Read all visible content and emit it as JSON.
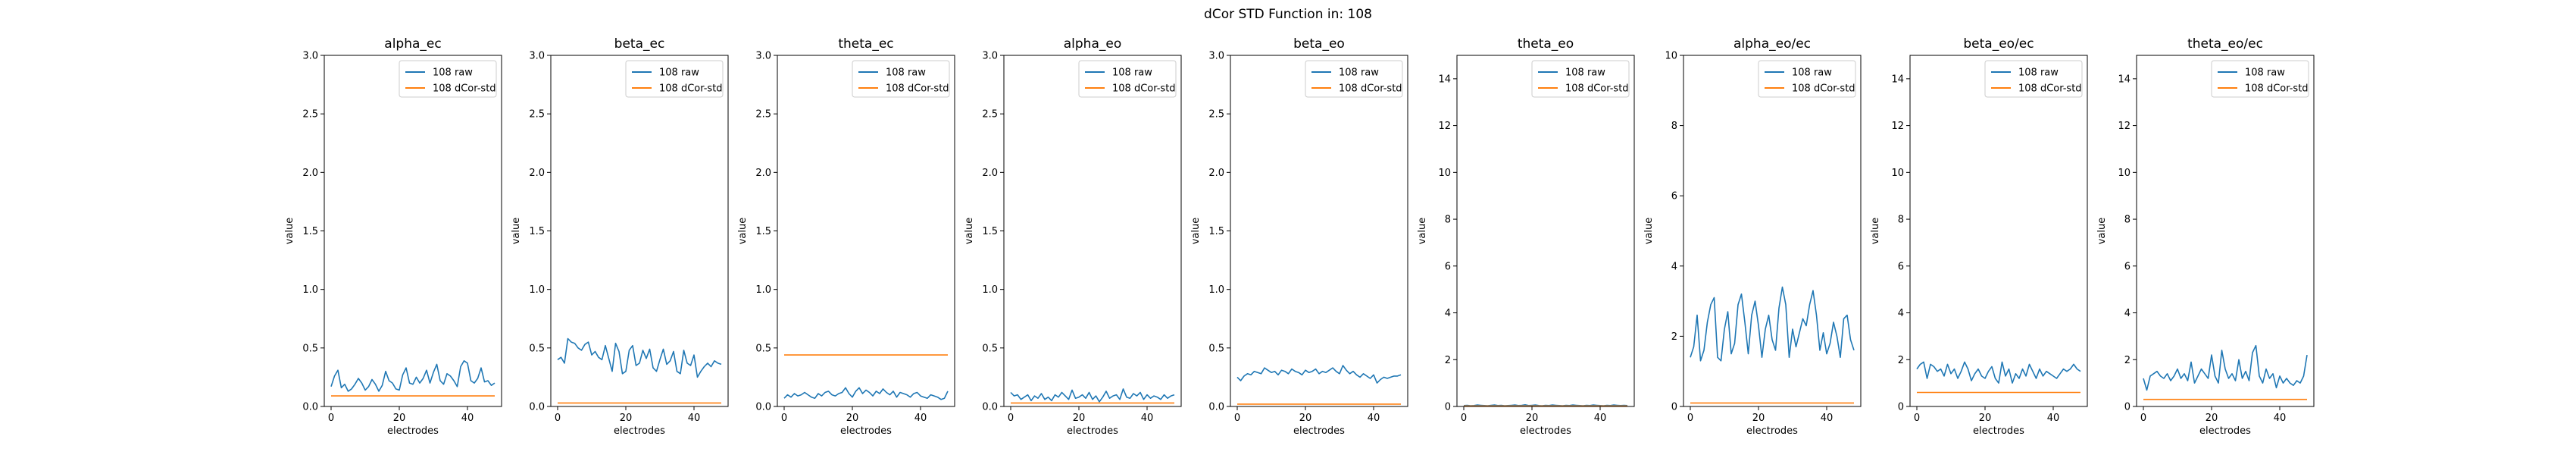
{
  "figure": {
    "suptitle": "dCor STD Function in: 108"
  },
  "chart_data": [
    {
      "type": "line",
      "title": "alpha_ec",
      "xlabel": "electrodes",
      "ylabel": "value",
      "xlim": [
        -2,
        50
      ],
      "ylim": [
        0,
        3
      ],
      "xticks": [
        0,
        20,
        40
      ],
      "yticks": [
        0,
        0.5,
        1,
        1.5,
        2,
        2.5,
        3
      ],
      "legend": "top-right",
      "series": [
        {
          "name": "108 raw",
          "color": "#1f77b4",
          "y": [
            0.17,
            0.26,
            0.31,
            0.16,
            0.19,
            0.13,
            0.15,
            0.19,
            0.24,
            0.2,
            0.14,
            0.17,
            0.23,
            0.19,
            0.13,
            0.18,
            0.3,
            0.22,
            0.2,
            0.15,
            0.14,
            0.27,
            0.33,
            0.2,
            0.19,
            0.25,
            0.2,
            0.24,
            0.31,
            0.2,
            0.29,
            0.36,
            0.22,
            0.19,
            0.28,
            0.26,
            0.22,
            0.17,
            0.34,
            0.39,
            0.37,
            0.22,
            0.2,
            0.24,
            0.33,
            0.21,
            0.22,
            0.18,
            0.2
          ]
        },
        {
          "name": "108 dCor-std",
          "color": "#ff7f0e",
          "y": [
            0.09,
            0.09
          ]
        }
      ]
    },
    {
      "type": "line",
      "title": "beta_ec",
      "xlabel": "electrodes",
      "ylabel": "value",
      "xlim": [
        -2,
        50
      ],
      "ylim": [
        0,
        3
      ],
      "xticks": [
        0,
        20,
        40
      ],
      "yticks": [
        0,
        0.5,
        1,
        1.5,
        2,
        2.5,
        3
      ],
      "legend": "top-right",
      "series": [
        {
          "name": "108 raw",
          "color": "#1f77b4",
          "y": [
            0.4,
            0.42,
            0.37,
            0.58,
            0.55,
            0.54,
            0.5,
            0.48,
            0.53,
            0.55,
            0.44,
            0.47,
            0.42,
            0.4,
            0.52,
            0.41,
            0.3,
            0.54,
            0.47,
            0.28,
            0.3,
            0.48,
            0.52,
            0.35,
            0.37,
            0.48,
            0.41,
            0.49,
            0.33,
            0.3,
            0.4,
            0.49,
            0.36,
            0.39,
            0.47,
            0.3,
            0.28,
            0.48,
            0.37,
            0.35,
            0.44,
            0.25,
            0.3,
            0.34,
            0.37,
            0.34,
            0.39,
            0.37,
            0.36
          ]
        },
        {
          "name": "108 dCor-std",
          "color": "#ff7f0e",
          "y": [
            0.03,
            0.03
          ]
        }
      ]
    },
    {
      "type": "line",
      "title": "theta_ec",
      "xlabel": "electrodes",
      "ylabel": "value",
      "xlim": [
        -2,
        50
      ],
      "ylim": [
        0,
        3
      ],
      "xticks": [
        0,
        20,
        40
      ],
      "yticks": [
        0,
        0.5,
        1,
        1.5,
        2,
        2.5,
        3
      ],
      "legend": "top-right",
      "series": [
        {
          "name": "108 raw",
          "color": "#1f77b4",
          "y": [
            0.07,
            0.1,
            0.08,
            0.11,
            0.09,
            0.1,
            0.12,
            0.1,
            0.08,
            0.07,
            0.11,
            0.09,
            0.12,
            0.13,
            0.1,
            0.09,
            0.11,
            0.12,
            0.16,
            0.11,
            0.08,
            0.13,
            0.16,
            0.11,
            0.14,
            0.12,
            0.09,
            0.13,
            0.11,
            0.15,
            0.12,
            0.1,
            0.13,
            0.08,
            0.12,
            0.11,
            0.1,
            0.08,
            0.11,
            0.12,
            0.09,
            0.08,
            0.07,
            0.1,
            0.09,
            0.08,
            0.06,
            0.07,
            0.13
          ]
        },
        {
          "name": "108 dCor-std",
          "color": "#ff7f0e",
          "y": [
            0.44,
            0.44
          ]
        }
      ]
    },
    {
      "type": "line",
      "title": "alpha_eo",
      "xlabel": "electrodes",
      "ylabel": "value",
      "xlim": [
        -2,
        50
      ],
      "ylim": [
        0,
        3
      ],
      "xticks": [
        0,
        20,
        40
      ],
      "yticks": [
        0,
        0.5,
        1,
        1.5,
        2,
        2.5,
        3
      ],
      "legend": "top-right",
      "series": [
        {
          "name": "108 raw",
          "color": "#1f77b4",
          "y": [
            0.12,
            0.09,
            0.1,
            0.06,
            0.08,
            0.1,
            0.05,
            0.09,
            0.07,
            0.11,
            0.06,
            0.08,
            0.05,
            0.1,
            0.08,
            0.12,
            0.09,
            0.06,
            0.14,
            0.07,
            0.08,
            0.1,
            0.07,
            0.12,
            0.06,
            0.09,
            0.04,
            0.08,
            0.13,
            0.07,
            0.09,
            0.1,
            0.06,
            0.15,
            0.08,
            0.07,
            0.11,
            0.09,
            0.12,
            0.06,
            0.1,
            0.07,
            0.09,
            0.08,
            0.06,
            0.1,
            0.07,
            0.09,
            0.1
          ]
        },
        {
          "name": "108 dCor-std",
          "color": "#ff7f0e",
          "y": [
            0.03,
            0.03
          ]
        }
      ]
    },
    {
      "type": "line",
      "title": "beta_eo",
      "xlabel": "electrodes",
      "ylabel": "value",
      "xlim": [
        -2,
        50
      ],
      "ylim": [
        0,
        3
      ],
      "xticks": [
        0,
        20,
        40
      ],
      "yticks": [
        0,
        0.5,
        1,
        1.5,
        2,
        2.5,
        3
      ],
      "legend": "top-right",
      "series": [
        {
          "name": "108 raw",
          "color": "#1f77b4",
          "y": [
            0.25,
            0.22,
            0.26,
            0.28,
            0.27,
            0.3,
            0.29,
            0.28,
            0.33,
            0.31,
            0.29,
            0.3,
            0.27,
            0.31,
            0.3,
            0.28,
            0.32,
            0.3,
            0.29,
            0.27,
            0.31,
            0.29,
            0.3,
            0.32,
            0.28,
            0.3,
            0.29,
            0.31,
            0.33,
            0.3,
            0.28,
            0.35,
            0.31,
            0.28,
            0.3,
            0.27,
            0.25,
            0.28,
            0.26,
            0.24,
            0.27,
            0.2,
            0.23,
            0.25,
            0.24,
            0.25,
            0.26,
            0.26,
            0.27
          ]
        },
        {
          "name": "108 dCor-std",
          "color": "#ff7f0e",
          "y": [
            0.02,
            0.02
          ]
        }
      ]
    },
    {
      "type": "line",
      "title": "theta_eo",
      "xlabel": "electrodes",
      "ylabel": "value",
      "xlim": [
        -2,
        50
      ],
      "ylim": [
        0,
        15
      ],
      "xticks": [
        0,
        20,
        40
      ],
      "yticks": [
        0,
        2,
        4,
        6,
        8,
        10,
        12,
        14
      ],
      "legend": "top-right",
      "series": [
        {
          "name": "108 raw",
          "color": "#1f77b4",
          "y": [
            0.04,
            0.05,
            0.03,
            0.04,
            0.06,
            0.05,
            0.04,
            0.03,
            0.05,
            0.06,
            0.04,
            0.05,
            0.03,
            0.04,
            0.05,
            0.06,
            0.04,
            0.05,
            0.07,
            0.04,
            0.05,
            0.06,
            0.04,
            0.03,
            0.05,
            0.04,
            0.06,
            0.05,
            0.04,
            0.03,
            0.05,
            0.04,
            0.06,
            0.05,
            0.04,
            0.03,
            0.05,
            0.04,
            0.06,
            0.05,
            0.04,
            0.03,
            0.05,
            0.04,
            0.06,
            0.05,
            0.04,
            0.05,
            0.04
          ]
        },
        {
          "name": "108 dCor-std",
          "color": "#ff7f0e",
          "y": [
            0.02,
            0.02
          ]
        }
      ]
    },
    {
      "type": "line",
      "title": "alpha_eo/ec",
      "xlabel": "electrodes",
      "ylabel": "value",
      "xlim": [
        -2,
        50
      ],
      "ylim": [
        0,
        10
      ],
      "xticks": [
        0,
        20,
        40
      ],
      "yticks": [
        0,
        2,
        4,
        6,
        8,
        10
      ],
      "legend": "top-right",
      "series": [
        {
          "name": "108 raw",
          "color": "#1f77b4",
          "y": [
            1.4,
            1.7,
            2.6,
            1.3,
            1.6,
            2.4,
            2.9,
            3.1,
            1.4,
            1.3,
            2.2,
            2.7,
            1.5,
            1.8,
            2.9,
            3.2,
            2.4,
            1.5,
            2.6,
            3.0,
            2.3,
            1.4,
            2.2,
            2.6,
            1.9,
            1.6,
            2.8,
            3.4,
            2.9,
            1.4,
            2.2,
            1.7,
            2.1,
            2.5,
            2.3,
            2.9,
            3.3,
            2.6,
            1.6,
            2.1,
            1.5,
            1.8,
            2.4,
            2.0,
            1.4,
            2.5,
            2.6,
            1.9,
            1.6
          ]
        },
        {
          "name": "108 dCor-std",
          "color": "#ff7f0e",
          "y": [
            0.1,
            0.1
          ]
        }
      ]
    },
    {
      "type": "line",
      "title": "beta_eo/ec",
      "xlabel": "electrodes",
      "ylabel": "value",
      "xlim": [
        -2,
        50
      ],
      "ylim": [
        0,
        15
      ],
      "xticks": [
        0,
        20,
        40
      ],
      "yticks": [
        0,
        2,
        4,
        6,
        8,
        10,
        12,
        14
      ],
      "legend": "top-right",
      "series": [
        {
          "name": "108 raw",
          "color": "#1f77b4",
          "y": [
            1.6,
            1.8,
            1.9,
            1.2,
            1.8,
            1.7,
            1.5,
            1.6,
            1.3,
            1.8,
            1.4,
            1.6,
            1.2,
            1.5,
            1.9,
            1.6,
            1.1,
            1.4,
            1.6,
            1.3,
            1.2,
            1.5,
            1.7,
            1.2,
            1.0,
            1.9,
            1.3,
            1.6,
            1.0,
            1.4,
            1.2,
            1.6,
            1.3,
            1.8,
            1.5,
            1.2,
            1.6,
            1.3,
            1.5,
            1.4,
            1.3,
            1.2,
            1.4,
            1.6,
            1.5,
            1.6,
            1.8,
            1.6,
            1.5
          ]
        },
        {
          "name": "108 dCor-std",
          "color": "#ff7f0e",
          "y": [
            0.6,
            0.6
          ]
        }
      ]
    },
    {
      "type": "line",
      "title": "theta_eo/ec",
      "xlabel": "electrodes",
      "ylabel": "value",
      "xlim": [
        -2,
        50
      ],
      "ylim": [
        0,
        15
      ],
      "xticks": [
        0,
        20,
        40
      ],
      "yticks": [
        0,
        2,
        4,
        6,
        8,
        10,
        12,
        14
      ],
      "legend": "top-right",
      "series": [
        {
          "name": "108 raw",
          "color": "#1f77b4",
          "y": [
            1.2,
            0.7,
            1.3,
            1.4,
            1.5,
            1.3,
            1.2,
            1.4,
            1.1,
            1.3,
            1.6,
            1.2,
            1.4,
            1.1,
            1.9,
            1.0,
            1.3,
            1.6,
            1.4,
            1.2,
            2.2,
            1.3,
            1.0,
            2.4,
            1.6,
            1.2,
            1.4,
            1.1,
            2.0,
            1.2,
            1.5,
            1.1,
            2.3,
            2.6,
            1.3,
            1.0,
            1.6,
            1.2,
            1.4,
            0.8,
            1.3,
            1.0,
            1.2,
            1.0,
            0.9,
            1.1,
            1.0,
            1.3,
            2.2
          ]
        },
        {
          "name": "108 dCor-std",
          "color": "#ff7f0e",
          "y": [
            0.3,
            0.3
          ]
        }
      ]
    }
  ]
}
